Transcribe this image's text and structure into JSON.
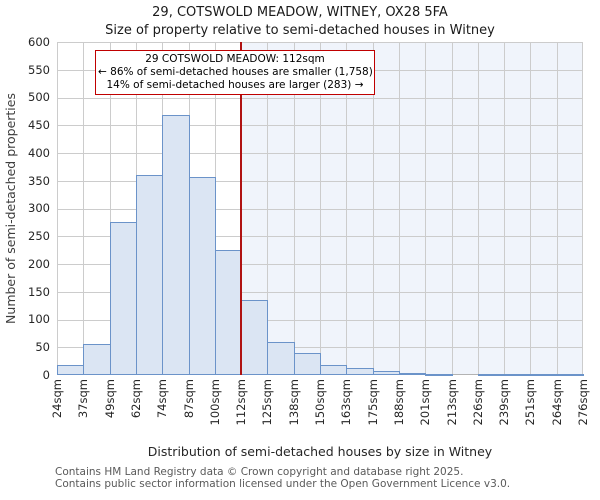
{
  "title": "29, COTSWOLD MEADOW, WITNEY, OX28 5FA",
  "subtitle": "Size of property relative to semi-detached houses in Witney",
  "annotation": {
    "lines": {
      "0": "29 COTSWOLD MEADOW: 112sqm",
      "1": "← 86% of semi-detached houses are smaller (1,758)",
      "2": "14% of semi-detached houses are larger (283) →"
    },
    "property_label": "29 COTSWOLD MEADOW",
    "property_size_sqm": 112,
    "smaller_pct": "86%",
    "smaller_count": "1,758",
    "larger_pct": "14%",
    "larger_count": "283",
    "border_color": "#c00000"
  },
  "chart_data": {
    "type": "bar",
    "title": "29, COTSWOLD MEADOW, WITNEY, OX28 5FA",
    "subtitle": "Size of property relative to semi-detached houses in Witney",
    "xlabel": "Distribution of semi-detached houses by size in Witney",
    "ylabel": "Number of semi-detached properties",
    "ylim": [
      0,
      600
    ],
    "ytick_step": 50,
    "ytick_labels": [
      "0",
      "50",
      "100",
      "150",
      "200",
      "250",
      "300",
      "350",
      "400",
      "450",
      "500",
      "550",
      "600"
    ],
    "bin_edges_sqm": [
      24,
      37,
      49,
      62,
      74,
      87,
      100,
      112,
      125,
      138,
      150,
      163,
      175,
      188,
      201,
      213,
      226,
      239,
      251,
      264,
      276
    ],
    "x_tick_labels": [
      "24sqm",
      "37sqm",
      "49sqm",
      "62sqm",
      "74sqm",
      "87sqm",
      "100sqm",
      "112sqm",
      "125sqm",
      "138sqm",
      "150sqm",
      "163sqm",
      "175sqm",
      "188sqm",
      "201sqm",
      "213sqm",
      "226sqm",
      "239sqm",
      "251sqm",
      "264sqm",
      "276sqm"
    ],
    "values": [
      18,
      55,
      275,
      360,
      468,
      357,
      225,
      135,
      60,
      40,
      18,
      13,
      7,
      4,
      2,
      0,
      1,
      1,
      1,
      1
    ],
    "marker_sqm": 112,
    "grid": true,
    "legend": "none",
    "colors": {
      "bar_fill": "#dbe5f3",
      "bar_border": "#6b93c9",
      "grid": "#cccccc",
      "marker_line": "#b01212",
      "shade_right_of_marker": "#f0f4fb"
    }
  },
  "footer": {
    "line1": "Contains HM Land Registry data © Crown copyright and database right 2025.",
    "line2": "Contains public sector information licensed under the Open Government Licence v3.0."
  }
}
